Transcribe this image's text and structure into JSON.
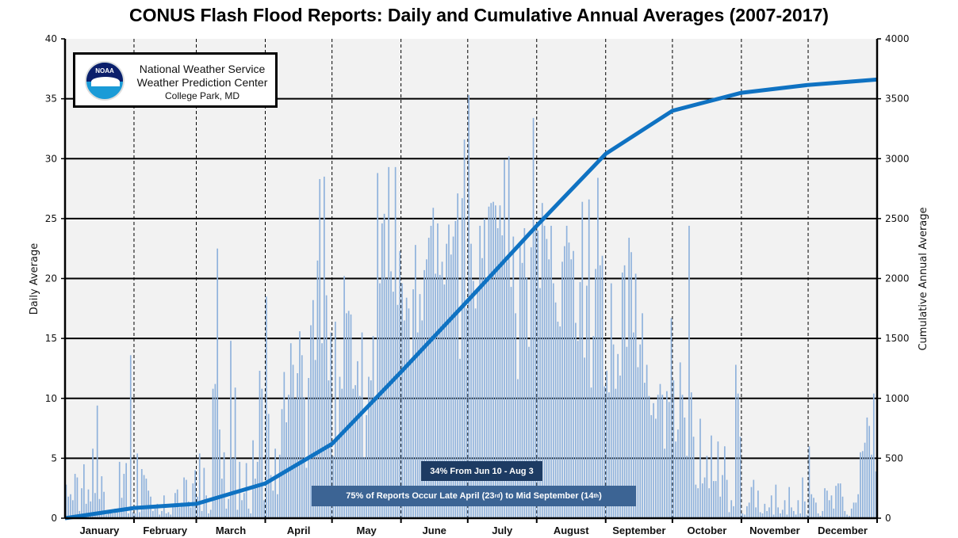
{
  "chart_data": {
    "type": "bar",
    "title": "CONUS Flash Flood Reports: Daily and Cumulative Annual Averages (2007-2017)",
    "ylabel": "Daily Average",
    "y2label": "Cumulative Annual Average",
    "ylim": [
      0,
      40
    ],
    "y2lim": [
      0,
      4000
    ],
    "yticks": [
      "0",
      "5",
      "10",
      "15",
      "20",
      "25",
      "30",
      "35",
      "40"
    ],
    "y2ticks": [
      "0",
      "500",
      "1000",
      "1500",
      "2000",
      "2500",
      "3000",
      "3500",
      "4000"
    ],
    "grid": true,
    "colors": {
      "bars": "#8fb2dc",
      "cumulative_line": "#0f72c2",
      "plot_bg": "#f2f2f2"
    },
    "months": [
      "January",
      "February",
      "March",
      "April",
      "May",
      "June",
      "July",
      "August",
      "September",
      "October",
      "November",
      "December"
    ],
    "month_days": [
      31,
      28,
      31,
      30,
      31,
      30,
      31,
      31,
      30,
      31,
      30,
      31
    ],
    "daily_values": [
      2.8,
      1.8,
      2,
      1.5,
      3.7,
      3.4,
      0.6,
      2.5,
      4.5,
      1.2,
      2.4,
      1.4,
      5.8,
      2.1,
      9.4,
      1.6,
      3.5,
      2.2,
      0.3,
      0.5,
      0.6,
      0.4,
      0.8,
      0.5,
      4.7,
      1.7,
      3.7,
      4.6,
      0.4,
      13.6,
      0.5,
      0.4,
      5.4,
      0.5,
      4.1,
      3.6,
      3.3,
      2.3,
      1.8,
      0.6,
      0.8,
      1.2,
      0.3,
      0.6,
      1.9,
      0.4,
      0.5,
      0.3,
      1.2,
      2.1,
      2.4,
      0.9,
      1.3,
      3.4,
      3.2,
      1.4,
      0.9,
      2.9,
      4.0,
      1.8,
      5.4,
      0.6,
      4.2,
      1.9,
      0.4,
      0.7,
      10.8,
      11.2,
      22.5,
      7.4,
      3.3,
      5.5,
      0.8,
      1.6,
      14.8,
      5.0,
      10.9,
      0.7,
      4.7,
      1.5,
      2.1,
      4.6,
      0.8,
      0.4,
      6.5,
      3.3,
      4.7,
      12.3,
      10.8,
      1.5,
      18.5,
      8.7,
      3.6,
      2.3,
      5.8,
      2.0,
      5.3,
      9.1,
      12.2,
      8.0,
      10.3,
      14.6,
      12.8,
      10.0,
      12.1,
      15.6,
      13.6,
      10.1,
      4.2,
      11.7,
      16.1,
      18.2,
      13.2,
      21.5,
      28.3,
      14.6,
      28.5,
      18.6,
      11.5,
      15.5,
      5.2,
      16.4,
      6.9,
      11.8,
      10.8,
      20.2,
      17.1,
      17.3,
      17.0,
      10.8,
      11.1,
      13.1,
      10.2,
      15.5,
      5.1,
      8.6,
      11.8,
      11.5,
      15.2,
      9.8,
      28.8,
      19.6,
      24.6,
      25.4,
      20.0,
      29.3,
      20.6,
      18.9,
      29.3,
      17.8,
      22.3,
      19.6,
      16.5,
      18.4,
      17.5,
      13.2,
      19.1,
      22.8,
      15.5,
      18.7,
      16.5,
      20.7,
      21.6,
      23.4,
      24.4,
      25.9,
      20.4,
      24.6,
      20.3,
      21.4,
      19.5,
      22.9,
      24.5,
      22.0,
      23.5,
      24.8,
      27.1,
      13.3,
      26.7,
      31.6,
      17.5,
      35.3,
      22.9,
      19.8,
      17.5,
      19.1,
      24.4,
      21.7,
      25.0,
      20.0,
      26.0,
      26.3,
      26.4,
      26.1,
      24.2,
      26.1,
      23.6,
      29.9,
      21.4,
      30.2,
      19.3,
      23.5,
      17.1,
      11.6,
      22.8,
      21.3,
      24.2,
      20.1,
      14.3,
      22.6,
      33.4,
      24.5,
      24.0,
      19.2,
      26.3,
      24.4,
      23.3,
      21.6,
      24.4,
      19.6,
      18.0,
      16.4,
      16.0,
      21.4,
      22.7,
      24.4,
      23.0,
      21.6,
      22.3,
      16.3,
      14.8,
      19.7,
      26.4,
      13.4,
      19.4,
      26.6,
      10.9,
      15.2,
      20.8,
      28.4,
      21.1,
      21.9,
      11.0,
      12.3,
      10.5,
      19.6,
      14.5,
      10.8,
      13.7,
      11.9,
      20.5,
      21.1,
      14.3,
      23.4,
      22.2,
      15.5,
      20.4,
      12.6,
      14.5,
      17.1,
      11.3,
      12.8,
      10.2,
      8.6,
      9.6,
      8.3,
      10.3,
      11.2,
      10.3,
      5.8,
      10.6,
      9.7,
      16.7,
      11.5,
      6.4,
      7.4,
      13.0,
      10.3,
      8.4,
      5.2,
      24.4,
      10.5,
      6.8,
      2.8,
      2.5,
      8.3,
      2.9,
      3.4,
      5.2,
      2.5,
      6.9,
      3.1,
      3.1,
      6.4,
      1.8,
      3.6,
      6.0,
      3.2,
      0.5,
      1.5,
      1.0,
      12.8,
      10.4,
      6.8,
      0.4,
      0.3,
      1.0,
      1.3,
      2.6,
      3.2,
      0.9,
      2.3,
      0.5,
      0.4,
      1.2,
      0.6,
      0.9,
      1.9,
      0.3,
      2.8,
      0.9,
      0.4,
      0.7,
      1.5,
      0.3,
      2.6,
      0.9,
      0.6,
      0.3,
      1.5,
      0.4,
      3.4,
      1.4,
      0.3,
      6.0,
      2.0,
      1.7,
      1.3,
      0.4,
      0.2,
      0.6,
      2.5,
      2.3,
      1.5,
      1.9,
      0.8,
      2.7,
      2.9,
      2.9,
      1.8,
      0.6,
      0.3,
      0.2,
      0.8,
      1.3,
      1.3,
      2.0,
      5.5,
      5.6,
      6.3,
      8.4,
      7.7,
      5.3,
      10.4,
      3.9
    ],
    "cumulative": {
      "day": [
        0,
        31,
        59,
        90,
        120,
        151,
        181,
        212,
        243,
        273,
        304,
        334,
        365
      ],
      "value": [
        0,
        85,
        120,
        290,
        620,
        1220,
        1815,
        2440,
        3040,
        3400,
        3550,
        3615,
        3660
      ]
    },
    "annotations": {
      "peak_period": "34% From Jun 10 - Aug 3",
      "main_period_pre": "75% of Reports Occur Late April (23",
      "main_period_sup1": "rd",
      "main_period_mid": ") to Mid September (14",
      "main_period_sup2": "th",
      "main_period_post": ")"
    }
  },
  "logo": {
    "emblem_text": "NOAA",
    "line1": "National Weather Service",
    "line2": "Weather Prediction Center",
    "line3": "College Park, MD"
  }
}
